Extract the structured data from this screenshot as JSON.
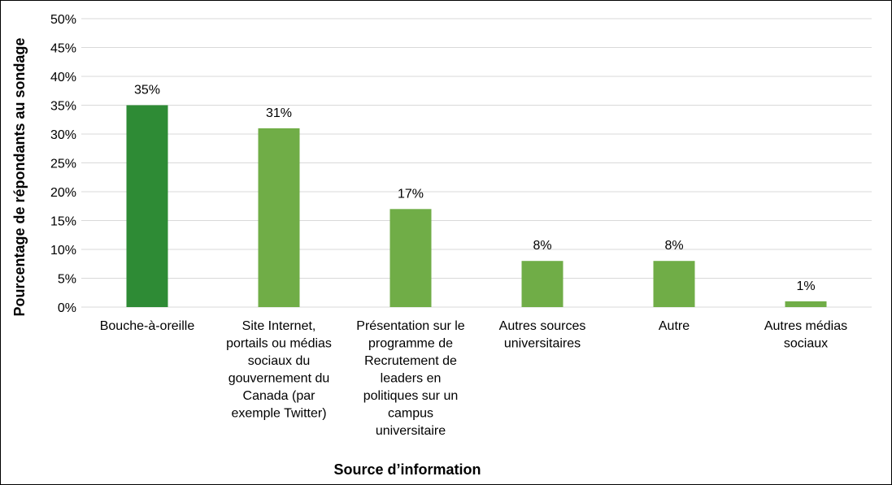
{
  "chart_data": {
    "type": "bar",
    "title": "",
    "xlabel": "Source d’information",
    "ylabel": "Pourcentage de répondants au sondage",
    "ylim": [
      0,
      50
    ],
    "y_ticks": [
      0,
      5,
      10,
      15,
      20,
      25,
      30,
      35,
      40,
      45,
      50
    ],
    "y_tick_labels": [
      "0%",
      "5%",
      "10%",
      "15%",
      "20%",
      "25%",
      "30%",
      "35%",
      "40%",
      "45%",
      "50%"
    ],
    "grid": true,
    "legend": "none",
    "categories": [
      [
        "Bouche-à-oreille"
      ],
      [
        "Site Internet,",
        "portails ou médias",
        "sociaux du",
        "gouvernement du",
        "Canada (par",
        "exemple Twitter)"
      ],
      [
        "Présentation sur le",
        "programme de",
        "Recrutement de",
        "leaders en",
        "politiques sur un",
        "campus",
        "universitaire"
      ],
      [
        "Autres sources",
        "universitaires"
      ],
      [
        "Autre"
      ],
      [
        "Autres médias",
        "sociaux"
      ]
    ],
    "values": [
      35,
      31,
      17,
      8,
      8,
      1
    ],
    "data_labels": [
      "35%",
      "31%",
      "17%",
      "8%",
      "8%",
      "1%"
    ],
    "colors": {
      "highlight": "#2e8b35",
      "bar": "#70ad47",
      "grid": "#d9d9d9",
      "frame": "#000000"
    },
    "highlight_index": 0
  }
}
